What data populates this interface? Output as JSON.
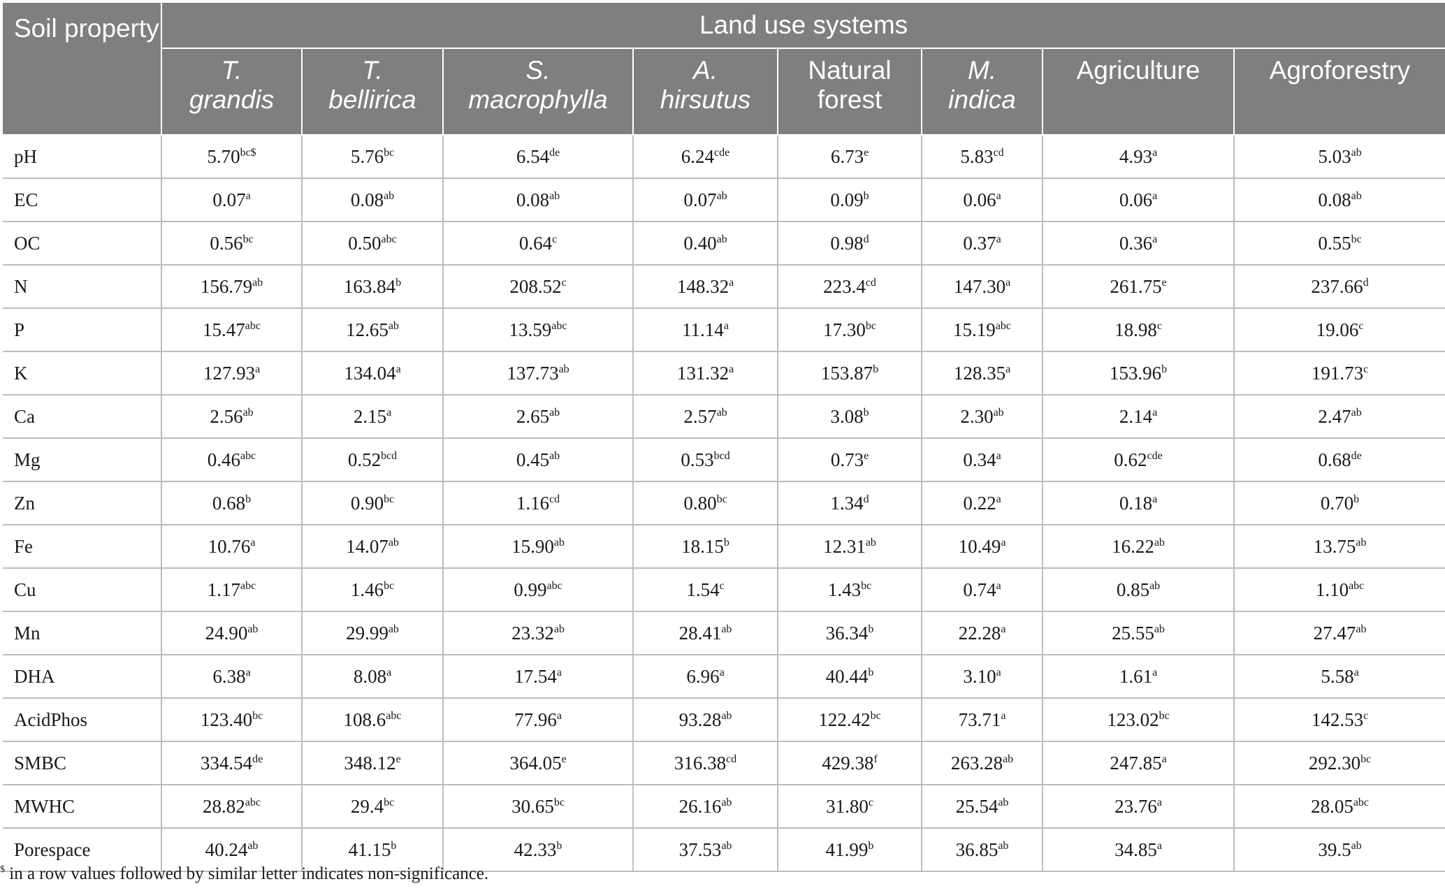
{
  "table": {
    "corner_header": "Soil property",
    "group_header": "Land use systems",
    "columns": [
      {
        "line1": "T.",
        "line2": "grandis",
        "italic": true
      },
      {
        "line1": "T.",
        "line2": "bellirica",
        "italic": true
      },
      {
        "line1": "S.",
        "line2": "macrophylla",
        "italic": true
      },
      {
        "line1": "A.",
        "line2": "hirsutus",
        "italic": true
      },
      {
        "line1": "Natural",
        "line2": "forest",
        "italic": false
      },
      {
        "line1": "M.",
        "line2": "indica",
        "italic": true
      },
      {
        "line1": "Agriculture",
        "line2": "",
        "italic": false
      },
      {
        "line1": "Agroforestry",
        "line2": "",
        "italic": false
      }
    ],
    "rows": [
      {
        "property": "pH",
        "cells": [
          [
            "5.70",
            "bc$"
          ],
          [
            "5.76",
            "bc"
          ],
          [
            "6.54",
            "de"
          ],
          [
            "6.24",
            "cde"
          ],
          [
            "6.73",
            "e"
          ],
          [
            "5.83",
            "cd"
          ],
          [
            "4.93",
            "a"
          ],
          [
            "5.03",
            "ab"
          ]
        ]
      },
      {
        "property": "EC",
        "cells": [
          [
            "0.07",
            "a"
          ],
          [
            "0.08",
            "ab"
          ],
          [
            "0.08",
            "ab"
          ],
          [
            "0.07",
            "ab"
          ],
          [
            "0.09",
            "b"
          ],
          [
            "0.06",
            "a"
          ],
          [
            "0.06",
            "a"
          ],
          [
            "0.08",
            "ab"
          ]
        ]
      },
      {
        "property": "OC",
        "cells": [
          [
            "0.56",
            "bc"
          ],
          [
            "0.50",
            "abc"
          ],
          [
            "0.64",
            "c"
          ],
          [
            "0.40",
            "ab"
          ],
          [
            "0.98",
            "d"
          ],
          [
            "0.37",
            "a"
          ],
          [
            "0.36",
            "a"
          ],
          [
            "0.55",
            "bc"
          ]
        ]
      },
      {
        "property": "N",
        "cells": [
          [
            "156.79",
            "ab"
          ],
          [
            "163.84",
            "b"
          ],
          [
            "208.52",
            "c"
          ],
          [
            "148.32",
            "a"
          ],
          [
            "223.4",
            "cd"
          ],
          [
            "147.30",
            "a"
          ],
          [
            "261.75",
            "e"
          ],
          [
            "237.66",
            "d"
          ]
        ]
      },
      {
        "property": "P",
        "cells": [
          [
            "15.47",
            "abc"
          ],
          [
            "12.65",
            "ab"
          ],
          [
            "13.59",
            "abc"
          ],
          [
            "11.14",
            "a"
          ],
          [
            "17.30",
            "bc"
          ],
          [
            "15.19",
            "abc"
          ],
          [
            "18.98",
            "c"
          ],
          [
            "19.06",
            "c"
          ]
        ]
      },
      {
        "property": "K",
        "cells": [
          [
            "127.93",
            "a"
          ],
          [
            "134.04",
            "a"
          ],
          [
            "137.73",
            "ab"
          ],
          [
            "131.32",
            "a"
          ],
          [
            "153.87",
            "b"
          ],
          [
            "128.35",
            "a"
          ],
          [
            "153.96",
            "b"
          ],
          [
            "191.73",
            "c"
          ]
        ]
      },
      {
        "property": "Ca",
        "cells": [
          [
            "2.56",
            "ab"
          ],
          [
            "2.15",
            "a"
          ],
          [
            "2.65",
            "ab"
          ],
          [
            "2.57",
            "ab"
          ],
          [
            "3.08",
            "b"
          ],
          [
            "2.30",
            "ab"
          ],
          [
            "2.14",
            "a"
          ],
          [
            "2.47",
            "ab"
          ]
        ]
      },
      {
        "property": "Mg",
        "cells": [
          [
            "0.46",
            "abc"
          ],
          [
            "0.52",
            "bcd"
          ],
          [
            "0.45",
            "ab"
          ],
          [
            "0.53",
            "bcd"
          ],
          [
            "0.73",
            "e"
          ],
          [
            "0.34",
            "a"
          ],
          [
            "0.62",
            "cde"
          ],
          [
            "0.68",
            "de"
          ]
        ]
      },
      {
        "property": "Zn",
        "cells": [
          [
            "0.68",
            "b"
          ],
          [
            "0.90",
            "bc"
          ],
          [
            "1.16",
            "cd"
          ],
          [
            "0.80",
            "bc"
          ],
          [
            "1.34",
            "d"
          ],
          [
            "0.22",
            "a"
          ],
          [
            "0.18",
            "a"
          ],
          [
            "0.70",
            "b"
          ]
        ]
      },
      {
        "property": "Fe",
        "cells": [
          [
            "10.76",
            "a"
          ],
          [
            "14.07",
            "ab"
          ],
          [
            "15.90",
            "ab"
          ],
          [
            "18.15",
            "b"
          ],
          [
            "12.31",
            "ab"
          ],
          [
            "10.49",
            "a"
          ],
          [
            "16.22",
            "ab"
          ],
          [
            "13.75",
            "ab"
          ]
        ]
      },
      {
        "property": "Cu",
        "cells": [
          [
            "1.17",
            "abc"
          ],
          [
            "1.46",
            "bc"
          ],
          [
            "0.99",
            "abc"
          ],
          [
            "1.54",
            "c"
          ],
          [
            "1.43",
            "bc"
          ],
          [
            "0.74",
            "a"
          ],
          [
            "0.85",
            "ab"
          ],
          [
            "1.10",
            "abc"
          ]
        ]
      },
      {
        "property": "Mn",
        "cells": [
          [
            "24.90",
            "ab"
          ],
          [
            "29.99",
            "ab"
          ],
          [
            "23.32",
            "ab"
          ],
          [
            "28.41",
            "ab"
          ],
          [
            "36.34",
            "b"
          ],
          [
            "22.28",
            "a"
          ],
          [
            "25.55",
            "ab"
          ],
          [
            "27.47",
            "ab"
          ]
        ]
      },
      {
        "property": "DHA",
        "cells": [
          [
            "6.38",
            "a"
          ],
          [
            "8.08",
            "a"
          ],
          [
            "17.54",
            "a"
          ],
          [
            "6.96",
            "a"
          ],
          [
            "40.44",
            "b"
          ],
          [
            "3.10",
            "a"
          ],
          [
            "1.61",
            "a"
          ],
          [
            "5.58",
            "a"
          ]
        ]
      },
      {
        "property": "AcidPhos",
        "cells": [
          [
            "123.40",
            "bc"
          ],
          [
            "108.6",
            "abc"
          ],
          [
            "77.96",
            "a"
          ],
          [
            "93.28",
            "ab"
          ],
          [
            "122.42",
            "bc"
          ],
          [
            "73.71",
            "a"
          ],
          [
            "123.02",
            "bc"
          ],
          [
            "142.53",
            "c"
          ]
        ]
      },
      {
        "property": "SMBC",
        "cells": [
          [
            "334.54",
            "de"
          ],
          [
            "348.12",
            "e"
          ],
          [
            "364.05",
            "e"
          ],
          [
            "316.38",
            "cd"
          ],
          [
            "429.38",
            "f"
          ],
          [
            "263.28",
            "ab"
          ],
          [
            "247.85",
            "a"
          ],
          [
            "292.30",
            "bc"
          ]
        ]
      },
      {
        "property": "MWHC",
        "cells": [
          [
            "28.82",
            "abc"
          ],
          [
            "29.4",
            "bc"
          ],
          [
            "30.65",
            "bc"
          ],
          [
            "26.16",
            "ab"
          ],
          [
            "31.80",
            "c"
          ],
          [
            "25.54",
            "ab"
          ],
          [
            "23.76",
            "a"
          ],
          [
            "28.05",
            "abc"
          ]
        ]
      },
      {
        "property": "Porespace",
        "cells": [
          [
            "40.24",
            "ab"
          ],
          [
            "41.15",
            "b"
          ],
          [
            "42.33",
            "b"
          ],
          [
            "37.53",
            "ab"
          ],
          [
            "41.99",
            "b"
          ],
          [
            "36.85",
            "ab"
          ],
          [
            "34.85",
            "a"
          ],
          [
            "39.5",
            "ab"
          ]
        ]
      }
    ]
  },
  "footnote": {
    "symbol": "$",
    "text": " in a row values followed by similar letter indicates non-significance."
  }
}
